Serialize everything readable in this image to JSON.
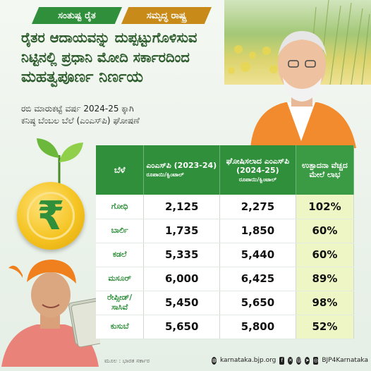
{
  "tags": [
    "ಸಂತುಷ್ಟ ರೈತ",
    "ಸಮೃದ್ಧ ರಾಷ್ಟ್ರ"
  ],
  "headline": [
    "ರೈತರ ಆದಾಯವನ್ನು ದುಪ್ಪಟ್ಟುಗೊಳಿಸುವ",
    "ನಿಟ್ಟಿನಲ್ಲಿ ಪ್ರಧಾನಿ ಮೋದಿ ಸರ್ಕಾರದಿಂದ",
    "ಮಹತ್ವಪೂರ್ಣ ನಿರ್ಣಯ"
  ],
  "subline": [
    "ರಬಿ ಮಾರುಕಟ್ಟೆ ವರ್ಷ 2024-25 ಕ್ಕಾಗಿ",
    "ಕನಿಷ್ಠ ಬೆಂಬಲ ಬೆಲೆ (ಎಂಎಸ್‌ಪಿ) ಘೋಷಣೆ"
  ],
  "table": {
    "headers": {
      "crop": "ಬೆಳೆ",
      "msp_old": "ಎಂಎಸ್‌ಪಿ (2023-24)",
      "msp_old_unit": "ರೂಪಾಯಿ/ಕ್ವಿಂಟಾಲ್",
      "msp_new": "ಘೋಷಿಸಲಾದ ಎಂಎಸ್‌ಪಿ (2024-25)",
      "msp_new_unit": "ರೂಪಾಯಿ/ಕ್ವಿಂಟಾಲ್",
      "margin": "ಉತ್ಪಾದನಾ ವೆಚ್ಚದ ಮೇಲೆ ಲಾಭ"
    },
    "rows": [
      {
        "crop": "ಗೋಧಿ",
        "old": "2,125",
        "new": "2,275",
        "pct": "102%"
      },
      {
        "crop": "ಬಾರ್ಲಿ",
        "old": "1,735",
        "new": "1,850",
        "pct": "60%"
      },
      {
        "crop": "ಕಡಲೆ",
        "old": "5,335",
        "new": "5,440",
        "pct": "60%"
      },
      {
        "crop": "ಮಸೂರ್",
        "old": "6,000",
        "new": "6,425",
        "pct": "89%"
      },
      {
        "crop": "ರೇಪ್ಸೀಡ್/ ಸಾಸಿವೆ",
        "old": "5,450",
        "new": "5,650",
        "pct": "98%"
      },
      {
        "crop": "ಕುಸುಬೆ",
        "old": "5,650",
        "new": "5,800",
        "pct": "52%"
      }
    ]
  },
  "source": "ಮೂಲ : ಭಾರತ ಸರ್ಕಾರ",
  "footer": {
    "website": "karnataka.bjp.org",
    "handle": "BJP4Karnataka",
    "social_icons": [
      "facebook-icon",
      "x-icon",
      "threads-icon",
      "telegram-icon",
      "instagram-icon"
    ]
  },
  "colors": {
    "primary_green": "#2f8f3a",
    "accent_orange": "#c88a18",
    "highlight": "#eef6c6"
  }
}
